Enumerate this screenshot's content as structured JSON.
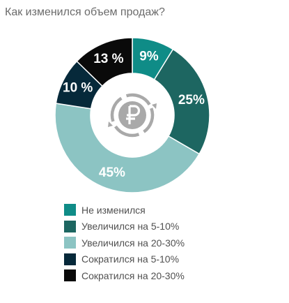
{
  "title": "Как изменился объем продаж?",
  "center_icon": "ruble-circular-arrows-icon",
  "chart_data": {
    "type": "pie",
    "variant": "donut",
    "title": "Как изменился объем продаж?",
    "categories": [
      "Не изменился",
      "Увеличился на 5-10%",
      "Увеличился на 20-30%",
      "Сократился на 5-10%",
      "Сократился на 20-30%"
    ],
    "values": [
      9,
      25,
      45,
      10,
      13
    ],
    "data_labels": [
      "9%",
      "25%",
      "45%",
      "10 %",
      "13 %"
    ],
    "colors": [
      "#0f8c87",
      "#1d6661",
      "#8cc4c3",
      "#06293a",
      "#0a0a0a"
    ],
    "label_colors": [
      "#ffffff",
      "#ffffff",
      "#ffffff",
      "#ffffff",
      "#ffffff"
    ],
    "legend_position": "bottom",
    "start_angle_deg": 0,
    "direction": "clockwise"
  }
}
